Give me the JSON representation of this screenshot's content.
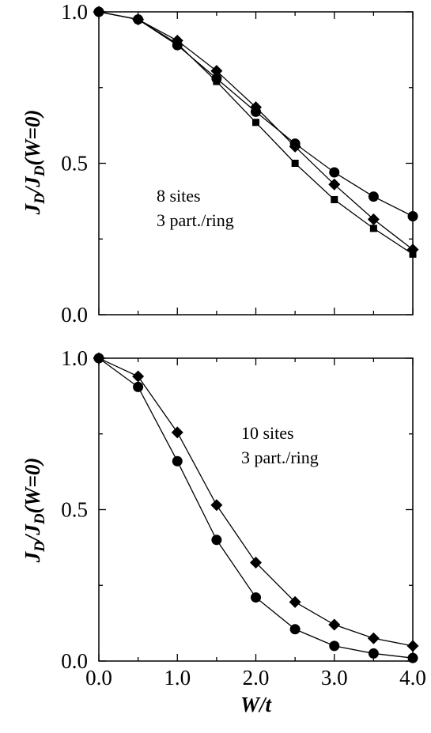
{
  "chart_data": [
    {
      "type": "line",
      "annotation": [
        "8 sites",
        "3 part./ring"
      ],
      "ylabel": {
        "main": "J",
        "sub1": "D",
        "mid": "/J",
        "sub2": "D",
        "tail": "(W=0)"
      },
      "xlim": [
        0,
        4
      ],
      "ylim": [
        0,
        1
      ],
      "yticks": [
        0.0,
        0.5,
        1.0
      ],
      "ytick_labels": [
        "0.0",
        "0.5",
        "1.0"
      ],
      "xticks": [
        0,
        0.5,
        1,
        1.5,
        2,
        2.5,
        3,
        3.5,
        4
      ],
      "grid": false,
      "series": [
        {
          "marker": "circle",
          "x": [
            0,
            0.5,
            1.0,
            1.5,
            2.0,
            2.5,
            3.0,
            3.5,
            4.0
          ],
          "y": [
            1.0,
            0.975,
            0.89,
            0.78,
            0.67,
            0.565,
            0.47,
            0.39,
            0.325
          ]
        },
        {
          "marker": "diamond",
          "x": [
            0,
            0.5,
            1.0,
            1.5,
            2.0,
            2.5,
            3.0,
            3.5,
            4.0
          ],
          "y": [
            1.0,
            0.975,
            0.905,
            0.805,
            0.685,
            0.555,
            0.43,
            0.315,
            0.215
          ]
        },
        {
          "marker": "square",
          "x": [
            0,
            0.5,
            1.0,
            1.5,
            2.0,
            2.5,
            3.0,
            3.5,
            4.0
          ],
          "y": [
            1.0,
            0.975,
            0.895,
            0.77,
            0.635,
            0.5,
            0.38,
            0.285,
            0.2
          ]
        }
      ]
    },
    {
      "type": "line",
      "annotation": [
        "10 sites",
        "3 part./ring"
      ],
      "ylabel": {
        "main": "J",
        "sub1": "D",
        "mid": "/J",
        "sub2": "D",
        "tail": "(W=0)"
      },
      "xlabel": "W/t",
      "xlim": [
        0,
        4
      ],
      "ylim": [
        0,
        1
      ],
      "yticks": [
        0.0,
        0.5,
        1.0
      ],
      "ytick_labels": [
        "0.0",
        "0.5",
        "1.0"
      ],
      "xticks": [
        0,
        0.5,
        1,
        1.5,
        2,
        2.5,
        3,
        3.5,
        4
      ],
      "xtick_labels": [
        "0.0",
        "1.0",
        "2.0",
        "3.0",
        "4.0"
      ],
      "grid": false,
      "series": [
        {
          "marker": "circle",
          "x": [
            0,
            0.5,
            1.0,
            1.5,
            2.0,
            2.5,
            3.0,
            3.5,
            4.0
          ],
          "y": [
            1.0,
            0.905,
            0.66,
            0.4,
            0.21,
            0.105,
            0.05,
            0.025,
            0.01
          ]
        },
        {
          "marker": "diamond",
          "x": [
            0,
            0.5,
            1.0,
            1.5,
            2.0,
            2.5,
            3.0,
            3.5,
            4.0
          ],
          "y": [
            1.0,
            0.94,
            0.755,
            0.515,
            0.325,
            0.195,
            0.12,
            0.075,
            0.05
          ]
        }
      ]
    }
  ]
}
